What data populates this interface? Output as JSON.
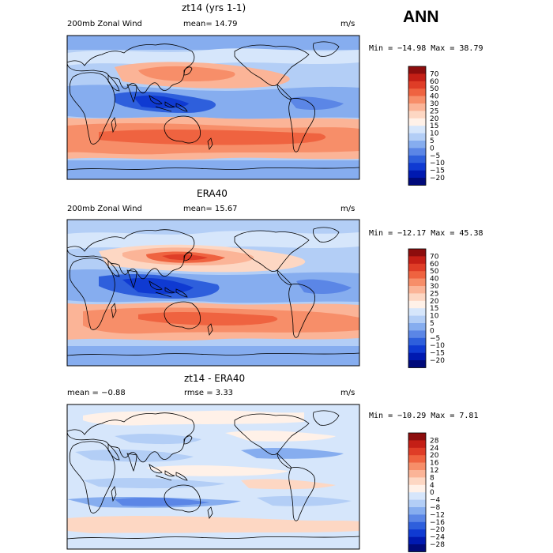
{
  "season": "ANN",
  "panels": [
    {
      "title": "zt14 (yrs 1-1)",
      "left_label": "200mb Zonal Wind",
      "mean_label": "mean=  14.79",
      "units": "m/s",
      "minmax": "Min = −14.98 Max =  38.79",
      "colorbar": {
        "labels": [
          "70",
          "60",
          "50",
          "40",
          "30",
          "25",
          "20",
          "15",
          "10",
          "5",
          "0",
          "−5",
          "−10",
          "−15",
          "−20"
        ],
        "colors": [
          "#8c0d0d",
          "#c41f16",
          "#df3d27",
          "#ef6340",
          "#f78e69",
          "#fbb497",
          "#fdd7c3",
          "#fff1e8",
          "#d6e6fb",
          "#b3cef6",
          "#86adef",
          "#5b86e6",
          "#2e5fdc",
          "#0f3ad2",
          "#0019b0",
          "#000a7a"
        ]
      }
    },
    {
      "title": "ERA40",
      "left_label": "200mb Zonal Wind",
      "mean_label": "mean=  15.67",
      "units": "m/s",
      "minmax": "Min = −12.17 Max =  45.38",
      "colorbar": {
        "labels": [
          "70",
          "60",
          "50",
          "40",
          "30",
          "25",
          "20",
          "15",
          "10",
          "5",
          "0",
          "−5",
          "−10",
          "−15",
          "−20"
        ],
        "colors": [
          "#8c0d0d",
          "#c41f16",
          "#df3d27",
          "#ef6340",
          "#f78e69",
          "#fbb497",
          "#fdd7c3",
          "#fff1e8",
          "#d6e6fb",
          "#b3cef6",
          "#86adef",
          "#5b86e6",
          "#2e5fdc",
          "#0f3ad2",
          "#0019b0",
          "#000a7a"
        ]
      }
    },
    {
      "title": "zt14 - ERA40",
      "left_label": "mean =   −0.88",
      "mean_label": "rmse =    3.33",
      "units": "m/s",
      "minmax": "Min = −10.29 Max =    7.81",
      "colorbar": {
        "labels": [
          "28",
          "24",
          "20",
          "16",
          "12",
          "8",
          "4",
          "0",
          "−4",
          "−8",
          "−12",
          "−16",
          "−20",
          "−24",
          "−28"
        ],
        "colors": [
          "#8c0d0d",
          "#c41f16",
          "#df3d27",
          "#ef6340",
          "#f78e69",
          "#fbb497",
          "#fdd7c3",
          "#fff1e8",
          "#d6e6fb",
          "#b3cef6",
          "#86adef",
          "#5b86e6",
          "#2e5fdc",
          "#0f3ad2",
          "#0019b0",
          "#000a7a"
        ]
      }
    }
  ]
}
